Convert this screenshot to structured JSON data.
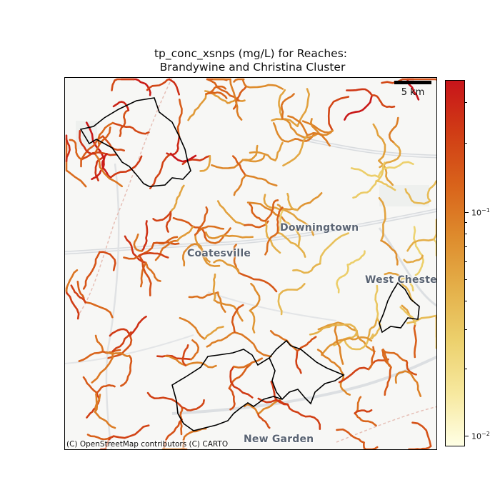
{
  "title": {
    "line1": "tp_conc_xsnps (mg/L) for Reaches:",
    "line2": " Brandywine and Christina Cluster"
  },
  "map": {
    "places": [
      {
        "name": "Downingtown"
      },
      {
        "name": "Coatesville"
      },
      {
        "name": "West Chester"
      },
      {
        "name": "New Garden"
      }
    ],
    "attribution": "(C) OpenStreetMap contributors (C) CARTO",
    "scale_label": "5 km"
  },
  "colorbar": {
    "scale": "log",
    "colormap": [
      "#ffffe5",
      "#f7e9a0",
      "#ecd06c",
      "#e4b04a",
      "#de8c2d",
      "#d9641b",
      "#d03c15",
      "#c8141a"
    ],
    "tick_labels": [
      {
        "base": "10",
        "exp": "−1",
        "value": 0.1
      },
      {
        "base": "10",
        "exp": "−2",
        "value": 0.01
      }
    ],
    "range": [
      0.0095,
      0.38
    ]
  },
  "colors": {
    "boundary": "#000000",
    "road": "#dadde0",
    "rail": "#e2b9b2"
  }
}
